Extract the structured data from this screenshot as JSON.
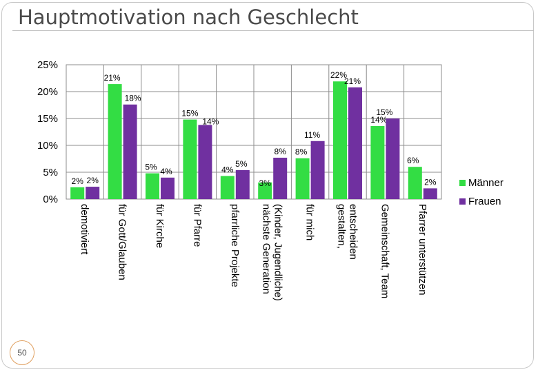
{
  "slide": {
    "title": "Hauptmotivation nach Geschlecht",
    "page_number": "50"
  },
  "colors": {
    "maenner": "#33dd44",
    "frauen": "#7030a0"
  },
  "chart_data": {
    "type": "bar",
    "title": "Hauptmotivation nach Geschlecht",
    "xlabel": "",
    "ylabel": "",
    "ylim": [
      0,
      25
    ],
    "y_ticks": [
      "0%",
      "5%",
      "10%",
      "15%",
      "20%",
      "25%"
    ],
    "y_tick_values": [
      0,
      5,
      10,
      15,
      20,
      25
    ],
    "grid": true,
    "legend_position": "right",
    "categories": [
      [
        "demotiviert"
      ],
      [
        "für Gott/Glauben"
      ],
      [
        "für Kirche"
      ],
      [
        "für Pfarre"
      ],
      [
        "pfarrliche Projekte"
      ],
      [
        "nächste Generation",
        "(Kinder, Jugendliche)"
      ],
      [
        "für mich"
      ],
      [
        "gestalten,",
        "entscheiden"
      ],
      [
        "Gemeinschaft, Team"
      ],
      [
        "Pfarrer unterstützen"
      ]
    ],
    "series": [
      {
        "name": "Männer",
        "values": [
          2.2,
          21.4,
          4.8,
          14.8,
          4.3,
          3.1,
          7.6,
          21.9,
          13.6,
          6.0
        ],
        "labels": [
          "2%",
          "21%",
          "5%",
          "15%",
          "4%",
          "3%",
          "8%",
          "22%",
          "14%",
          "6%"
        ]
      },
      {
        "name": "Frauen",
        "values": [
          2.3,
          17.6,
          4.0,
          13.8,
          5.4,
          7.7,
          10.8,
          20.8,
          15.0,
          2.0
        ],
        "labels": [
          "2%",
          "18%",
          "4%",
          "14%",
          "5%",
          "8%",
          "11%",
          "21%",
          "15%",
          "2%"
        ]
      }
    ]
  }
}
